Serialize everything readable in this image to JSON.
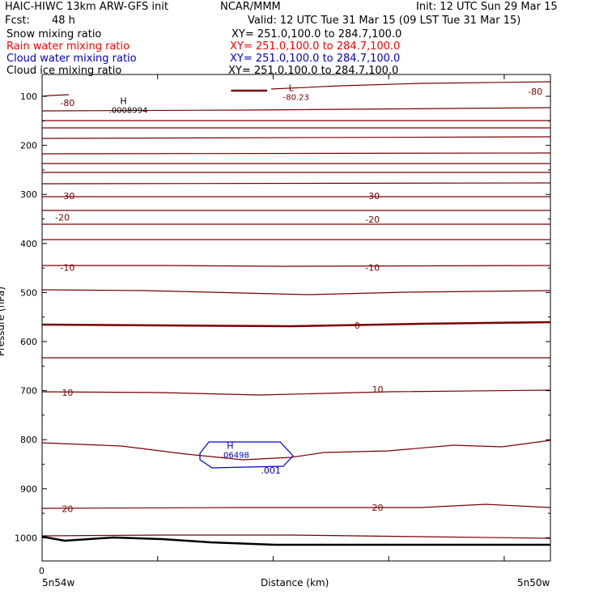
{
  "header": {
    "title": "HAIC-HIWC 13km ARW-GFS init",
    "org": "NCAR/MMM",
    "init": "Init: 12 UTC Sun 29 Mar 15",
    "fcst_label": "Fcst:",
    "fcst_value": "48 h",
    "valid": "Valid: 12 UTC Tue 31 Mar 15 (09 LST Tue 31 Mar 15)"
  },
  "fields": [
    {
      "name": "Snow mixing ratio",
      "xy": "XY= 251.0,100.0 to 284.7,100.0",
      "color": "#000000"
    },
    {
      "name": "Rain water mixing ratio",
      "xy": "XY= 251.0,100.0 to 284.7,100.0",
      "color": "#ff0000"
    },
    {
      "name": "Cloud water mixing ratio",
      "xy": "XY= 251.0,100.0 to 284.7,100.0",
      "color": "#0000cc"
    },
    {
      "name": "Cloud ice mixing ratio",
      "xy": "XY= 251.0,100.0 to 284.7,100.0",
      "color": "#000000"
    }
  ],
  "chart_data": {
    "type": "line",
    "ylabel": "Pressure (hPa)",
    "xlabel": "Distance (km)",
    "y_ticks": [
      100,
      200,
      300,
      400,
      500,
      600,
      700,
      800,
      900,
      1000
    ],
    "ylim": [
      1050,
      60
    ],
    "x_tick_label": "0",
    "x_left_label": "5n54w",
    "x_right_label": "5n50w",
    "isotherm_color": "#7a0000",
    "cloud_color": "#0000cc",
    "isotherm_labels": [
      {
        "text": "-80",
        "x": 0.05,
        "p": 113
      },
      {
        "text": "-80",
        "x": 0.97,
        "p": 90
      },
      {
        "text": "-30",
        "x": 0.05,
        "p": 303
      },
      {
        "text": "-30",
        "x": 0.65,
        "p": 303
      },
      {
        "text": "-20",
        "x": 0.04,
        "p": 347
      },
      {
        "text": "-20",
        "x": 0.65,
        "p": 351
      },
      {
        "text": "-10",
        "x": 0.05,
        "p": 449
      },
      {
        "text": "-10",
        "x": 0.65,
        "p": 449
      },
      {
        "text": "0",
        "x": 0.62,
        "p": 567
      },
      {
        "text": "10",
        "x": 0.05,
        "p": 704
      },
      {
        "text": "10",
        "x": 0.66,
        "p": 697
      },
      {
        "text": "20",
        "x": 0.05,
        "p": 941
      },
      {
        "text": "20",
        "x": 0.66,
        "p": 938
      }
    ],
    "extrema": [
      {
        "symbol": "H",
        "value": ".0008994",
        "x": 0.16,
        "p": 116,
        "color": "#000000"
      },
      {
        "symbol": "L",
        "value": "-80.23",
        "x": 0.49,
        "p": 89,
        "color": "#7a0000"
      },
      {
        "symbol": "H",
        "value": ".06498",
        "x": 0.37,
        "p": 819,
        "color": "#0000cc"
      }
    ],
    "cloud_contour_label": ".001",
    "cloud_contour_label_pos": {
      "x": 0.45,
      "p": 862
    }
  }
}
